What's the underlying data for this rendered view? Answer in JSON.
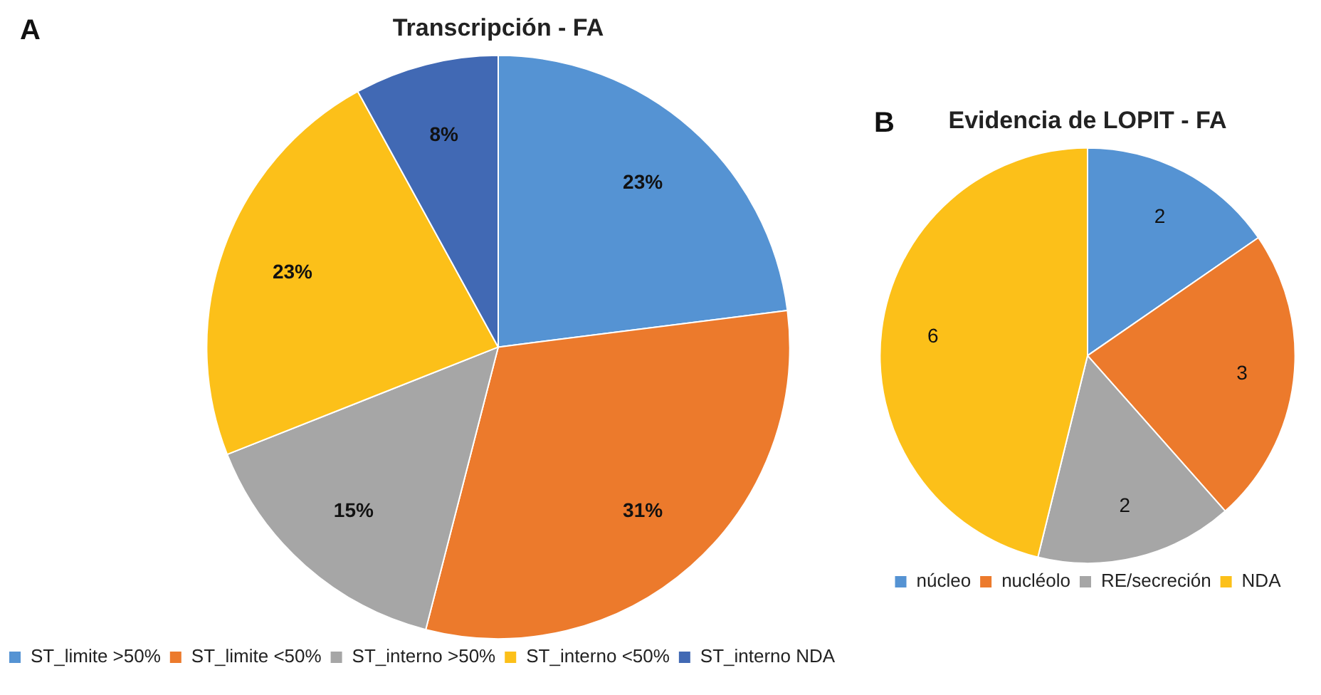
{
  "chart_data": [
    {
      "type": "pie",
      "title": "Transcripción - FA",
      "annotations": [
        "A"
      ],
      "categories": [
        "ST_limite >50%",
        "ST_limite <50%",
        "ST_interno >50%",
        "ST_interno <50%",
        "ST_interno NDA"
      ],
      "values": [
        23,
        31,
        15,
        23,
        8
      ],
      "colors": [
        "#5593d3",
        "#ec7a2c",
        "#a6a6a6",
        "#fcc019",
        "#4169b4"
      ],
      "value_labels": [
        "23%",
        "31%",
        "15%",
        "23%",
        "8%"
      ],
      "legend": "bottom"
    },
    {
      "type": "pie",
      "title": "Evidencia de LOPIT - FA",
      "annotations": [
        "B"
      ],
      "categories": [
        "núcleo",
        "nucléolo",
        "RE/secreción",
        "NDA"
      ],
      "values": [
        2,
        3,
        2,
        6
      ],
      "colors": [
        "#5593d3",
        "#ec7a2c",
        "#a6a6a6",
        "#fcc019"
      ],
      "data_labels": true,
      "legend": "bottom"
    }
  ]
}
